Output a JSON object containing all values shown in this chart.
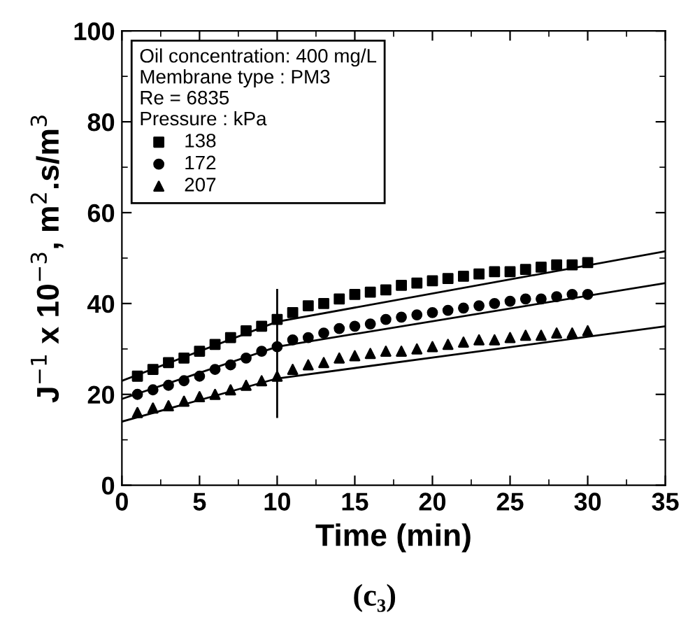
{
  "chart_data": {
    "type": "scatter",
    "xlabel": "Time (min)",
    "ylabel": "J$^{−1}$ x 10$^{−3}$, m$^{2}$.s/m$^{3}$",
    "legend_title": "Oil concentration: 400 mg/L\nMembrane type : PM3\nRe = 6835\nPressure : kPa",
    "annotations": [
      "(c₃)"
    ],
    "x": [
      1,
      2,
      3,
      4,
      5,
      6,
      7,
      8,
      9,
      10,
      11,
      12,
      13,
      14,
      15,
      16,
      17,
      18,
      19,
      20,
      21,
      22,
      23,
      24,
      25,
      26,
      27,
      28,
      29,
      30
    ],
    "series": [
      {
        "name": "138",
        "color": "#000000",
        "marker": "square",
        "values": [
          24,
          25.5,
          27,
          28,
          29.5,
          31,
          32.5,
          34,
          35,
          36.5,
          38,
          39.5,
          40,
          41,
          42,
          42.5,
          43,
          44,
          44.5,
          45,
          45.5,
          46,
          46.5,
          47,
          47,
          47.5,
          48,
          48.5,
          48.5,
          49
        ]
      },
      {
        "name": "172",
        "color": "#000000",
        "marker": "circle",
        "values": [
          20,
          21,
          22,
          23,
          24,
          25.5,
          26.5,
          28,
          29.5,
          30.5,
          32,
          32.5,
          33.5,
          34.5,
          35,
          35.5,
          36.5,
          37,
          37.5,
          38,
          38.5,
          39,
          39.5,
          40,
          40.5,
          41,
          41,
          41.5,
          42,
          42
        ]
      },
      {
        "name": "207",
        "color": "#000000",
        "marker": "triangle",
        "values": [
          16,
          17,
          17.5,
          18.5,
          19.5,
          20,
          21,
          22,
          23,
          24,
          25.5,
          26.5,
          27,
          28,
          28.5,
          29,
          29.5,
          29.5,
          30,
          30.5,
          31,
          31.5,
          32,
          32,
          32.5,
          33,
          33,
          33.5,
          33.5,
          34
        ]
      },
      {
        "type": "line",
        "color": "#000000",
        "marker": "none",
        "x": [
          0,
          10,
          35
        ],
        "values": [
          23,
          36,
          51.5
        ]
      },
      {
        "type": "line",
        "color": "#000000",
        "marker": "none",
        "x": [
          0,
          10,
          35
        ],
        "values": [
          19,
          30.5,
          44.5
        ]
      },
      {
        "type": "line",
        "color": "#000000",
        "marker": "none",
        "x": [
          0,
          10,
          35
        ],
        "values": [
          14,
          23.5,
          35
        ]
      },
      {
        "type": "line",
        "color": "#000000",
        "marker": "none",
        "x": [
          10,
          10
        ],
        "values": [
          43,
          15
        ]
      }
    ],
    "xlim": [
      0,
      35
    ],
    "xticks": [
      0,
      5,
      10,
      15,
      20,
      25,
      30,
      35
    ],
    "ylim": [
      0,
      100
    ],
    "yticks": [
      0,
      20,
      40,
      60,
      80,
      100
    ],
    "grid": false,
    "legend": "top left"
  }
}
